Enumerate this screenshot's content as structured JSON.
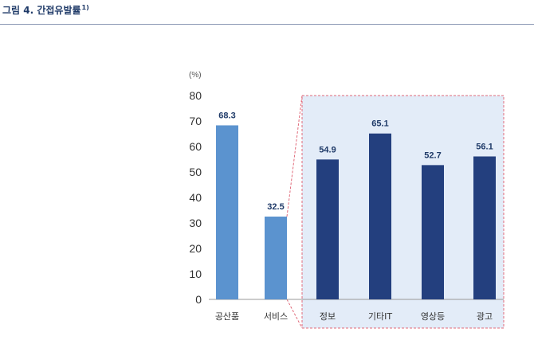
{
  "figure": {
    "title": "그림 4. 간접유발률",
    "footnote": "1)"
  },
  "colors": {
    "highlight_bar": "#5b93cf",
    "main_bar": "#233f7e",
    "zoom_box_fill": "#e3ecf8",
    "zoom_box_border": "#e06a7a",
    "axis": "#999999",
    "title": "#1f3a68"
  },
  "chart_data": {
    "type": "bar",
    "unit_label": "(%)",
    "categories": [
      "공산품",
      "서비스",
      "정보",
      "기타IT",
      "영상등",
      "광고"
    ],
    "values": [
      68.3,
      32.5,
      54.9,
      65.1,
      52.7,
      56.1
    ],
    "value_labels": [
      "68.3",
      "32.5",
      "54.9",
      "65.1",
      "52.7",
      "56.1"
    ],
    "ylim": [
      0,
      80
    ],
    "yticks": [
      "0",
      "10",
      "20",
      "30",
      "40",
      "50",
      "60",
      "70",
      "80"
    ],
    "grid": false,
    "legend": "none",
    "zoom_box_categories": [
      "정보",
      "기타IT",
      "영상등",
      "광고"
    ]
  }
}
